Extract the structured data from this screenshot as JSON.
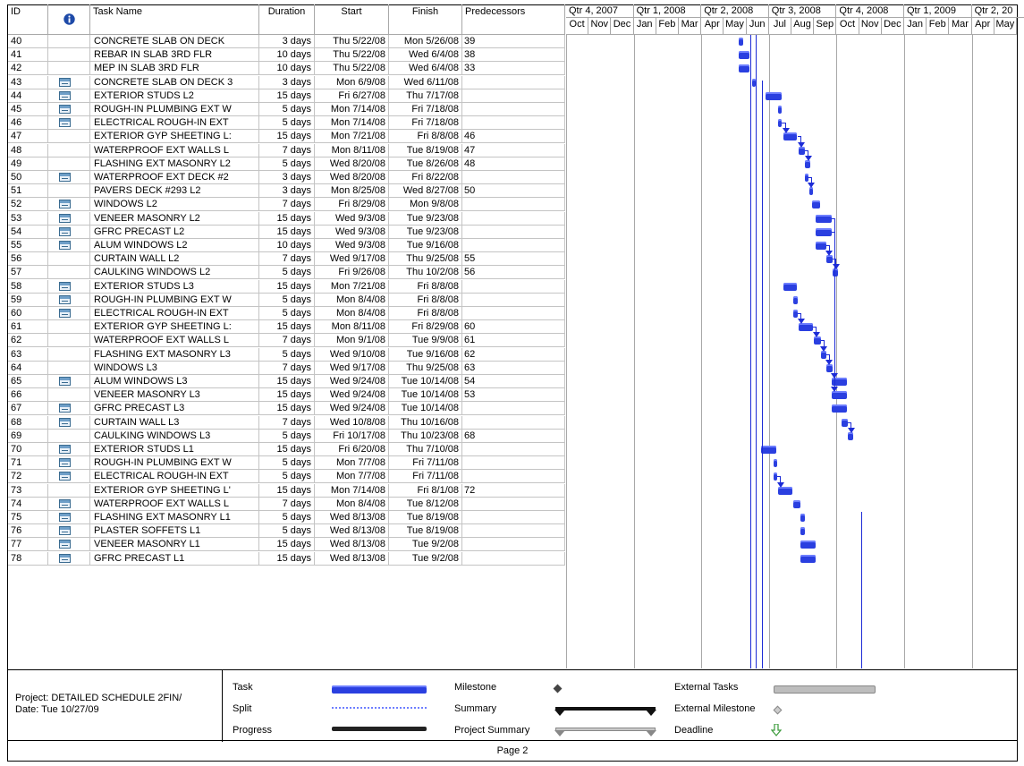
{
  "columns": {
    "id": "ID",
    "indicators_icon": "info-icon",
    "name": "Task Name",
    "duration": "Duration",
    "start": "Start",
    "finish": "Finish",
    "predecessors": "Predecessors"
  },
  "timescale": {
    "quarters": [
      "Qtr 4, 2007",
      "Qtr 1, 2008",
      "Qtr 2, 2008",
      "Qtr 3, 2008",
      "Qtr 4, 2008",
      "Qtr 1, 2009",
      "Qtr 2, 20"
    ],
    "months": [
      "Oct",
      "Nov",
      "Dec",
      "Jan",
      "Feb",
      "Mar",
      "Apr",
      "May",
      "Jun",
      "Jul",
      "Aug",
      "Sep",
      "Oct",
      "Nov",
      "Dec",
      "Jan",
      "Feb",
      "Mar",
      "Apr",
      "May"
    ]
  },
  "tasks": [
    {
      "id": "40",
      "note": false,
      "name": "CONCRETE SLAB ON DECK",
      "duration": "3 days",
      "start": "Thu 5/22/08",
      "finish": "Mon 5/26/08",
      "pred": "39"
    },
    {
      "id": "41",
      "note": false,
      "name": "REBAR IN SLAB 3RD FLR",
      "duration": "10 days",
      "start": "Thu 5/22/08",
      "finish": "Wed 6/4/08",
      "pred": "38"
    },
    {
      "id": "42",
      "note": false,
      "name": "MEP IN SLAB 3RD FLR",
      "duration": "10 days",
      "start": "Thu 5/22/08",
      "finish": "Wed 6/4/08",
      "pred": "33"
    },
    {
      "id": "43",
      "note": true,
      "name": "CONCRETE SLAB ON DECK 3",
      "duration": "3 days",
      "start": "Mon 6/9/08",
      "finish": "Wed 6/11/08",
      "pred": ""
    },
    {
      "id": "44",
      "note": true,
      "name": "EXTERIOR STUDS L2",
      "duration": "15 days",
      "start": "Fri 6/27/08",
      "finish": "Thu 7/17/08",
      "pred": ""
    },
    {
      "id": "45",
      "note": true,
      "name": "ROUGH-IN PLUMBING EXT W",
      "duration": "5 days",
      "start": "Mon 7/14/08",
      "finish": "Fri 7/18/08",
      "pred": ""
    },
    {
      "id": "46",
      "note": true,
      "name": "ELECTRICAL ROUGH-IN EXT",
      "duration": "5 days",
      "start": "Mon 7/14/08",
      "finish": "Fri 7/18/08",
      "pred": ""
    },
    {
      "id": "47",
      "note": false,
      "name": "EXTERIOR GYP SHEETING L:",
      "duration": "15 days",
      "start": "Mon 7/21/08",
      "finish": "Fri 8/8/08",
      "pred": "46"
    },
    {
      "id": "48",
      "note": false,
      "name": "WATERPROOF EXT WALLS L",
      "duration": "7 days",
      "start": "Mon 8/11/08",
      "finish": "Tue 8/19/08",
      "pred": "47"
    },
    {
      "id": "49",
      "note": false,
      "name": "FLASHING EXT MASONRY L2",
      "duration": "5 days",
      "start": "Wed 8/20/08",
      "finish": "Tue 8/26/08",
      "pred": "48"
    },
    {
      "id": "50",
      "note": true,
      "name": "WATERPROOF EXT DECK #2",
      "duration": "3 days",
      "start": "Wed 8/20/08",
      "finish": "Fri 8/22/08",
      "pred": ""
    },
    {
      "id": "51",
      "note": false,
      "name": "PAVERS DECK #293 L2",
      "duration": "3 days",
      "start": "Mon 8/25/08",
      "finish": "Wed 8/27/08",
      "pred": "50"
    },
    {
      "id": "52",
      "note": true,
      "name": "WINDOWS L2",
      "duration": "7 days",
      "start": "Fri 8/29/08",
      "finish": "Mon 9/8/08",
      "pred": ""
    },
    {
      "id": "53",
      "note": true,
      "name": "VENEER MASONRY L2",
      "duration": "15 days",
      "start": "Wed 9/3/08",
      "finish": "Tue 9/23/08",
      "pred": ""
    },
    {
      "id": "54",
      "note": true,
      "name": "GFRC PRECAST L2",
      "duration": "15 days",
      "start": "Wed 9/3/08",
      "finish": "Tue 9/23/08",
      "pred": ""
    },
    {
      "id": "55",
      "note": true,
      "name": "ALUM WINDOWS L2",
      "duration": "10 days",
      "start": "Wed 9/3/08",
      "finish": "Tue 9/16/08",
      "pred": ""
    },
    {
      "id": "56",
      "note": false,
      "name": "CURTAIN WALL L2",
      "duration": "7 days",
      "start": "Wed 9/17/08",
      "finish": "Thu 9/25/08",
      "pred": "55"
    },
    {
      "id": "57",
      "note": false,
      "name": "CAULKING WINDOWS L2",
      "duration": "5 days",
      "start": "Fri 9/26/08",
      "finish": "Thu 10/2/08",
      "pred": "56"
    },
    {
      "id": "58",
      "note": true,
      "name": "EXTERIOR STUDS L3",
      "duration": "15 days",
      "start": "Mon 7/21/08",
      "finish": "Fri 8/8/08",
      "pred": ""
    },
    {
      "id": "59",
      "note": true,
      "name": "ROUGH-IN PLUMBING EXT W",
      "duration": "5 days",
      "start": "Mon 8/4/08",
      "finish": "Fri 8/8/08",
      "pred": ""
    },
    {
      "id": "60",
      "note": true,
      "name": "ELECTRICAL ROUGH-IN EXT",
      "duration": "5 days",
      "start": "Mon 8/4/08",
      "finish": "Fri 8/8/08",
      "pred": ""
    },
    {
      "id": "61",
      "note": false,
      "name": "EXTERIOR GYP SHEETING L:",
      "duration": "15 days",
      "start": "Mon 8/11/08",
      "finish": "Fri 8/29/08",
      "pred": "60"
    },
    {
      "id": "62",
      "note": false,
      "name": "WATERPROOF EXT WALLS L",
      "duration": "7 days",
      "start": "Mon 9/1/08",
      "finish": "Tue 9/9/08",
      "pred": "61"
    },
    {
      "id": "63",
      "note": false,
      "name": "FLASHING EXT MASONRY L3",
      "duration": "5 days",
      "start": "Wed 9/10/08",
      "finish": "Tue 9/16/08",
      "pred": "62"
    },
    {
      "id": "64",
      "note": false,
      "name": "WINDOWS L3",
      "duration": "7 days",
      "start": "Wed 9/17/08",
      "finish": "Thu 9/25/08",
      "pred": "63"
    },
    {
      "id": "65",
      "note": true,
      "name": "ALUM WINDOWS L3",
      "duration": "15 days",
      "start": "Wed 9/24/08",
      "finish": "Tue 10/14/08",
      "pred": "54"
    },
    {
      "id": "66",
      "note": false,
      "name": "VENEER MASONRY L3",
      "duration": "15 days",
      "start": "Wed 9/24/08",
      "finish": "Tue 10/14/08",
      "pred": "53"
    },
    {
      "id": "67",
      "note": true,
      "name": "GFRC PRECAST L3",
      "duration": "15 days",
      "start": "Wed 9/24/08",
      "finish": "Tue 10/14/08",
      "pred": ""
    },
    {
      "id": "68",
      "note": true,
      "name": "CURTAIN WALL L3",
      "duration": "7 days",
      "start": "Wed 10/8/08",
      "finish": "Thu 10/16/08",
      "pred": ""
    },
    {
      "id": "69",
      "note": false,
      "name": "CAULKING WINDOWS L3",
      "duration": "5 days",
      "start": "Fri 10/17/08",
      "finish": "Thu 10/23/08",
      "pred": "68"
    },
    {
      "id": "70",
      "note": true,
      "name": "EXTERIOR STUDS L1",
      "duration": "15 days",
      "start": "Fri 6/20/08",
      "finish": "Thu 7/10/08",
      "pred": ""
    },
    {
      "id": "71",
      "note": true,
      "name": "ROUGH-IN PLUMBING EXT W",
      "duration": "5 days",
      "start": "Mon 7/7/08",
      "finish": "Fri 7/11/08",
      "pred": ""
    },
    {
      "id": "72",
      "note": true,
      "name": "ELECTRICAL ROUGH-IN EXT",
      "duration": "5 days",
      "start": "Mon 7/7/08",
      "finish": "Fri 7/11/08",
      "pred": ""
    },
    {
      "id": "73",
      "note": false,
      "name": "EXTERIOR GYP SHEETING L'",
      "duration": "15 days",
      "start": "Mon 7/14/08",
      "finish": "Fri 8/1/08",
      "pred": "72"
    },
    {
      "id": "74",
      "note": true,
      "name": "WATERPROOF EXT WALLS L",
      "duration": "7 days",
      "start": "Mon 8/4/08",
      "finish": "Tue 8/12/08",
      "pred": ""
    },
    {
      "id": "75",
      "note": true,
      "name": "FLASHING EXT MASONRY L1",
      "duration": "5 days",
      "start": "Wed 8/13/08",
      "finish": "Tue 8/19/08",
      "pred": ""
    },
    {
      "id": "76",
      "note": true,
      "name": "PLASTER SOFFETS L1",
      "duration": "5 days",
      "start": "Wed 8/13/08",
      "finish": "Tue 8/19/08",
      "pred": ""
    },
    {
      "id": "77",
      "note": true,
      "name": "VENEER MASONRY L1",
      "duration": "15 days",
      "start": "Wed 8/13/08",
      "finish": "Tue 9/2/08",
      "pred": ""
    },
    {
      "id": "78",
      "note": true,
      "name": "GFRC PRECAST L1",
      "duration": "15 days",
      "start": "Wed 8/13/08",
      "finish": "Tue 9/2/08",
      "pred": ""
    }
  ],
  "legend": {
    "project": "Project: DETAILED SCHEDULE 2FIN/",
    "date": "Date: Tue 10/27/09",
    "task": "Task",
    "split": "Split",
    "progress": "Progress",
    "milestone": "Milestone",
    "summary": "Summary",
    "project_summary": "Project Summary",
    "external_tasks": "External Tasks",
    "external_milestone": "External Milestone",
    "deadline": "Deadline"
  },
  "footer": {
    "page": "Page 2"
  },
  "colors": {
    "task_bar": "#2a3fe0",
    "link": "#1c2bd6",
    "deadline": "#3a9a3a"
  }
}
